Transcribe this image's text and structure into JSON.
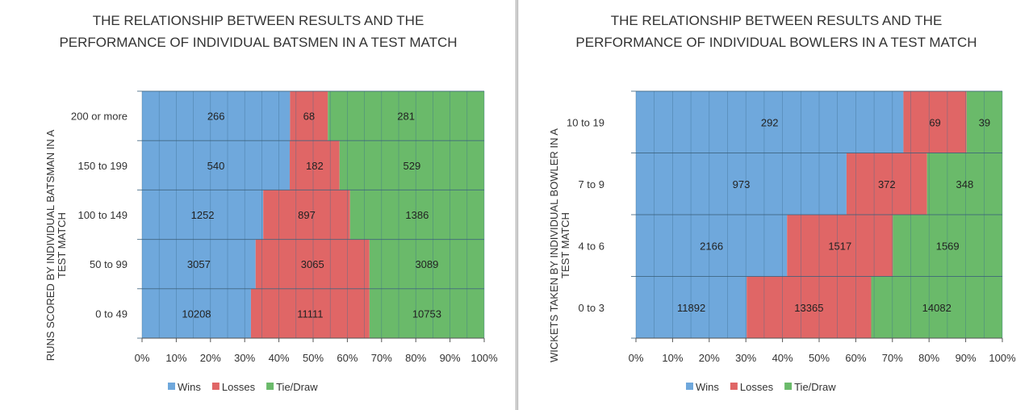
{
  "colors": {
    "wins": "#6fa8dc",
    "losses": "#e06666",
    "tie_draw": "#6aba6a",
    "grid": "#3a6d8f"
  },
  "chart_data": [
    {
      "type": "bar",
      "orientation": "horizontal",
      "stacking": "percent",
      "title": "THE RELATIONSHIP BETWEEN RESULTS AND THE PERFORMANCE OF INDIVIDUAL BATSMEN IN A TEST MATCH",
      "ylabel": "RUNS SCORED BY INDIVIDUAL BATSMAN  IN A TEST MATCH",
      "xlabel": "",
      "categories": [
        "0 to 49",
        "50 to 99",
        "100 to 149",
        "150 to 199",
        "200 or more"
      ],
      "series": [
        {
          "name": "Wins",
          "values": [
            10208,
            3057,
            1252,
            540,
            266
          ]
        },
        {
          "name": "Losses",
          "values": [
            11111,
            3065,
            897,
            182,
            68
          ]
        },
        {
          "name": "Tie/Draw",
          "values": [
            10753,
            3089,
            1386,
            529,
            281
          ]
        }
      ],
      "xticks": [
        "0%",
        "10%",
        "20%",
        "30%",
        "40%",
        "50%",
        "60%",
        "70%",
        "80%",
        "90%",
        "100%"
      ],
      "xlim": [
        0,
        100
      ],
      "grid": true,
      "legend": "bottom"
    },
    {
      "type": "bar",
      "orientation": "horizontal",
      "stacking": "percent",
      "title": "THE RELATIONSHIP BETWEEN RESULTS AND THE PERFORMANCE OF INDIVIDUAL BOWLERS IN A TEST MATCH",
      "ylabel": "WICKETS TAKEN  BY INDIVIDUAL BOWLER IN A TEST MATCH",
      "xlabel": "",
      "categories": [
        "0 to 3",
        "4 to 6",
        "7 to 9",
        "10 to 19"
      ],
      "series": [
        {
          "name": "Wins",
          "values": [
            11892,
            2166,
            973,
            292
          ]
        },
        {
          "name": "Losses",
          "values": [
            13365,
            1517,
            372,
            69
          ]
        },
        {
          "name": "Tie/Draw",
          "values": [
            14082,
            1569,
            348,
            39
          ]
        }
      ],
      "xticks": [
        "0%",
        "10%",
        "20%",
        "30%",
        "40%",
        "50%",
        "60%",
        "70%",
        "80%",
        "90%",
        "100%"
      ],
      "xlim": [
        0,
        100
      ],
      "grid": true,
      "legend": "bottom"
    }
  ]
}
